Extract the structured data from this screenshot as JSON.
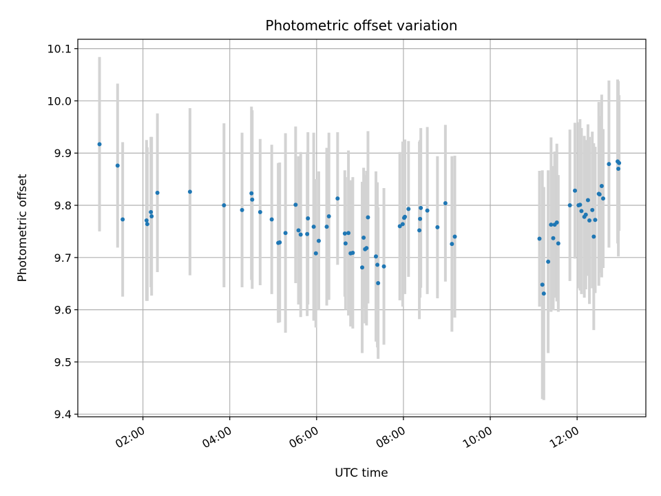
{
  "chart_data": {
    "type": "scatter",
    "title": "Photometric offset variation",
    "xlabel": "UTC time",
    "ylabel": "Photometric offset",
    "xlim": [
      "00:30",
      "13:35"
    ],
    "ylim": [
      9.395,
      10.118
    ],
    "grid": true,
    "x_ticks": [
      "02:00",
      "04:00",
      "06:00",
      "08:00",
      "10:00",
      "12:00"
    ],
    "y_ticks": [
      9.4,
      9.5,
      9.6,
      9.7,
      9.8,
      9.9,
      10.0,
      10.1
    ],
    "y_tick_labels": [
      "9.4",
      "9.5",
      "9.6",
      "9.7",
      "9.8",
      "9.9",
      "10.0",
      "10.1"
    ],
    "colors": {
      "points": "#1f77b4",
      "error_bars": "#d3d3d3",
      "grid": "#b0b0b0"
    },
    "series": [
      {
        "x": [
          "01:00",
          "01:25",
          "01:32",
          "02:05",
          "02:06",
          "02:11",
          "02:12",
          "02:20",
          "03:05",
          "03:52",
          "04:17",
          "04:30",
          "04:31",
          "04:42",
          "04:58",
          "05:07",
          "05:09",
          "05:17",
          "05:31",
          "05:35",
          "05:38",
          "05:47",
          "05:48",
          "05:56",
          "05:59",
          "06:03",
          "06:14",
          "06:17",
          "06:29",
          "06:39",
          "06:40",
          "06:44",
          "06:47",
          "06:50",
          "07:03",
          "07:05",
          "07:07",
          "07:09",
          "07:11",
          "07:22",
          "07:24",
          "07:25",
          "07:33",
          "07:55",
          "07:59",
          "08:01",
          "08:02",
          "08:07",
          "08:22",
          "08:23",
          "08:24",
          "08:33",
          "08:47",
          "08:58",
          "09:07",
          "09:11",
          "11:08",
          "11:12",
          "11:14",
          "11:20",
          "11:24",
          "11:27",
          "11:29",
          "11:32",
          "11:34",
          "11:50",
          "11:57",
          "12:02",
          "12:04",
          "12:06",
          "12:10",
          "12:12",
          "12:15",
          "12:17",
          "12:21",
          "12:23",
          "12:25",
          "12:30",
          "12:31",
          "12:34",
          "12:36",
          "12:44",
          "12:56",
          "12:57",
          "12:58"
        ],
        "y": [
          9.917,
          9.876,
          9.773,
          9.771,
          9.764,
          9.787,
          9.779,
          9.824,
          9.826,
          9.8,
          9.791,
          9.823,
          9.811,
          9.787,
          9.773,
          9.728,
          9.729,
          9.747,
          9.801,
          9.752,
          9.744,
          9.745,
          9.775,
          9.759,
          9.708,
          9.732,
          9.759,
          9.779,
          9.813,
          9.746,
          9.727,
          9.747,
          9.708,
          9.709,
          9.681,
          9.738,
          9.716,
          9.718,
          9.777,
          9.702,
          9.686,
          9.651,
          9.683,
          9.76,
          9.764,
          9.776,
          9.778,
          9.793,
          9.752,
          9.774,
          9.795,
          9.79,
          9.758,
          9.804,
          9.726,
          9.74,
          9.736,
          9.648,
          9.631,
          9.692,
          9.763,
          9.737,
          9.763,
          9.767,
          9.727,
          9.8,
          9.828,
          9.8,
          9.801,
          9.789,
          9.778,
          9.782,
          9.81,
          9.771,
          9.791,
          9.74,
          9.772,
          9.822,
          9.821,
          9.837,
          9.813,
          9.879,
          9.884,
          9.87,
          9.881
        ],
        "yerr": [
          0.167,
          0.157,
          0.148,
          0.154,
          0.147,
          0.144,
          0.152,
          0.152,
          0.16,
          0.157,
          0.148,
          0.166,
          0.171,
          0.14,
          0.143,
          0.153,
          0.153,
          0.191,
          0.15,
          0.142,
          0.158,
          0.157,
          0.165,
          0.18,
          0.142,
          0.133,
          0.151,
          0.16,
          0.127,
          0.121,
          0.127,
          0.158,
          0.14,
          0.145,
          0.164,
          0.134,
          0.142,
          0.148,
          0.165,
          0.163,
          0.158,
          0.145,
          0.15,
          0.142,
          0.158,
          0.144,
          0.148,
          0.13,
          0.17,
          0.151,
          0.153,
          0.16,
          0.136,
          0.15,
          0.168,
          0.155,
          0.13,
          0.219,
          0.204,
          0.175,
          0.167,
          0.138,
          0.14,
          0.151,
          0.131,
          0.145,
          0.13,
          0.159,
          0.164,
          0.159,
          0.155,
          0.143,
          0.145,
          0.16,
          0.15,
          0.179,
          0.14,
          0.176,
          0.15,
          0.175,
          0.133,
          0.16,
          0.157,
          0.168,
          0.13
        ]
      }
    ]
  }
}
